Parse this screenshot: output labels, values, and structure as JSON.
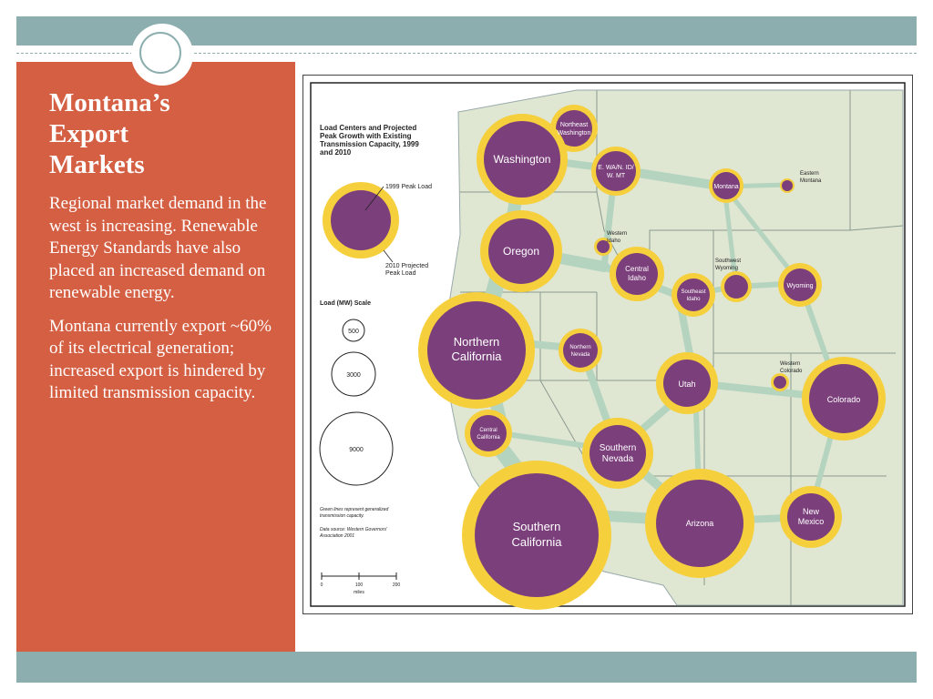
{
  "slide": {
    "title": "Montana’s Export Markets",
    "paragraphs": [
      "Regional market demand in the west is increasing. Renewable Energy Standards have also placed an increased demand on renewable energy.",
      "Montana currently export ~60% of its electrical generation; increased export is hindered by limited transmission capacity."
    ]
  },
  "map": {
    "legend": {
      "title_lines": [
        "Load Centers and Projected",
        "Peak Growth with Existing",
        "Transmission Capacity, 1999",
        "and 2010"
      ],
      "peak_1999": "1999 Peak Load",
      "peak_2010_lines": [
        "2010 Projected",
        "Peak Load"
      ],
      "scale_title": "Load (MW) Scale",
      "scale_values": [
        "500",
        "3000",
        "9000"
      ],
      "note_lines": [
        "Green lines represent generalized",
        "transmission capacity."
      ],
      "source_lines": [
        "Data source: Western Governors'",
        "Association 2001"
      ],
      "scale_ticks": [
        "0",
        "100",
        "200"
      ],
      "scale_unit": "miles"
    },
    "regions": [
      {
        "lines": [
          "Northeast",
          "Washington"
        ]
      },
      {
        "lines": [
          "Washington"
        ]
      },
      {
        "lines": [
          "E. WA/N. ID/",
          "W. MT"
        ]
      },
      {
        "lines": [
          "Montana"
        ]
      },
      {
        "lines": [
          "Eastern",
          "Montana"
        ]
      },
      {
        "lines": [
          "Western",
          "Idaho"
        ]
      },
      {
        "lines": [
          "Oregon"
        ]
      },
      {
        "lines": [
          "Central",
          "Idaho"
        ]
      },
      {
        "lines": [
          "Southeast",
          "Idaho"
        ]
      },
      {
        "lines": [
          "Southwest",
          "Wyoming"
        ]
      },
      {
        "lines": [
          "Wyoming"
        ]
      },
      {
        "lines": [
          "Northern",
          "California"
        ]
      },
      {
        "lines": [
          "Northern",
          "Nevada"
        ]
      },
      {
        "lines": [
          "Utah"
        ]
      },
      {
        "lines": [
          "Western",
          "Colorado"
        ]
      },
      {
        "lines": [
          "Colorado"
        ]
      },
      {
        "lines": [
          "Central",
          "California"
        ]
      },
      {
        "lines": [
          "Southern",
          "Nevada"
        ]
      },
      {
        "lines": [
          "Southern",
          "California"
        ]
      },
      {
        "lines": [
          "Arizona"
        ]
      },
      {
        "lines": [
          "New",
          "Mexico"
        ]
      }
    ],
    "colors": {
      "load_1999": "#7b3f7c",
      "load_2010": "#f6cf3c",
      "land": "#dfe6d2",
      "transmission": "#b4d4bf"
    }
  }
}
